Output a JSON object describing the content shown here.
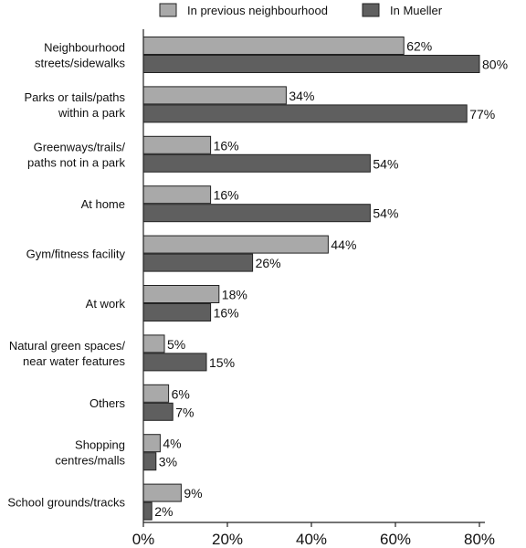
{
  "chart_data": {
    "type": "bar",
    "orientation": "horizontal",
    "categories": [
      [
        "Neighbourhood",
        "streets/sidewalks"
      ],
      [
        "Parks or tails/paths",
        "within a park"
      ],
      [
        "Greenways/trails/",
        "paths not in a park"
      ],
      [
        "At home"
      ],
      [
        "Gym/fitness facility"
      ],
      [
        "At work"
      ],
      [
        "Natural green spaces/",
        "near water features"
      ],
      [
        "Others"
      ],
      [
        "Shopping",
        "centres/malls"
      ],
      [
        "School grounds/tracks"
      ]
    ],
    "series": [
      {
        "name": "In previous neighbourhood",
        "color": "#a9a9a9",
        "values": [
          62,
          34,
          16,
          16,
          44,
          18,
          5,
          6,
          4,
          9
        ]
      },
      {
        "name": "In Mueller",
        "color": "#5f5f5f",
        "values": [
          80,
          77,
          54,
          54,
          26,
          16,
          15,
          7,
          3,
          2
        ]
      }
    ],
    "value_suffix": "%",
    "xlim": [
      0,
      80
    ],
    "xticks": [
      0,
      20,
      40,
      60,
      80
    ],
    "xtick_labels": [
      "0%",
      "20%",
      "40%",
      "60%",
      "80%"
    ],
    "legend_position": "top",
    "grid": false,
    "title": "",
    "xlabel": "",
    "ylabel": ""
  }
}
